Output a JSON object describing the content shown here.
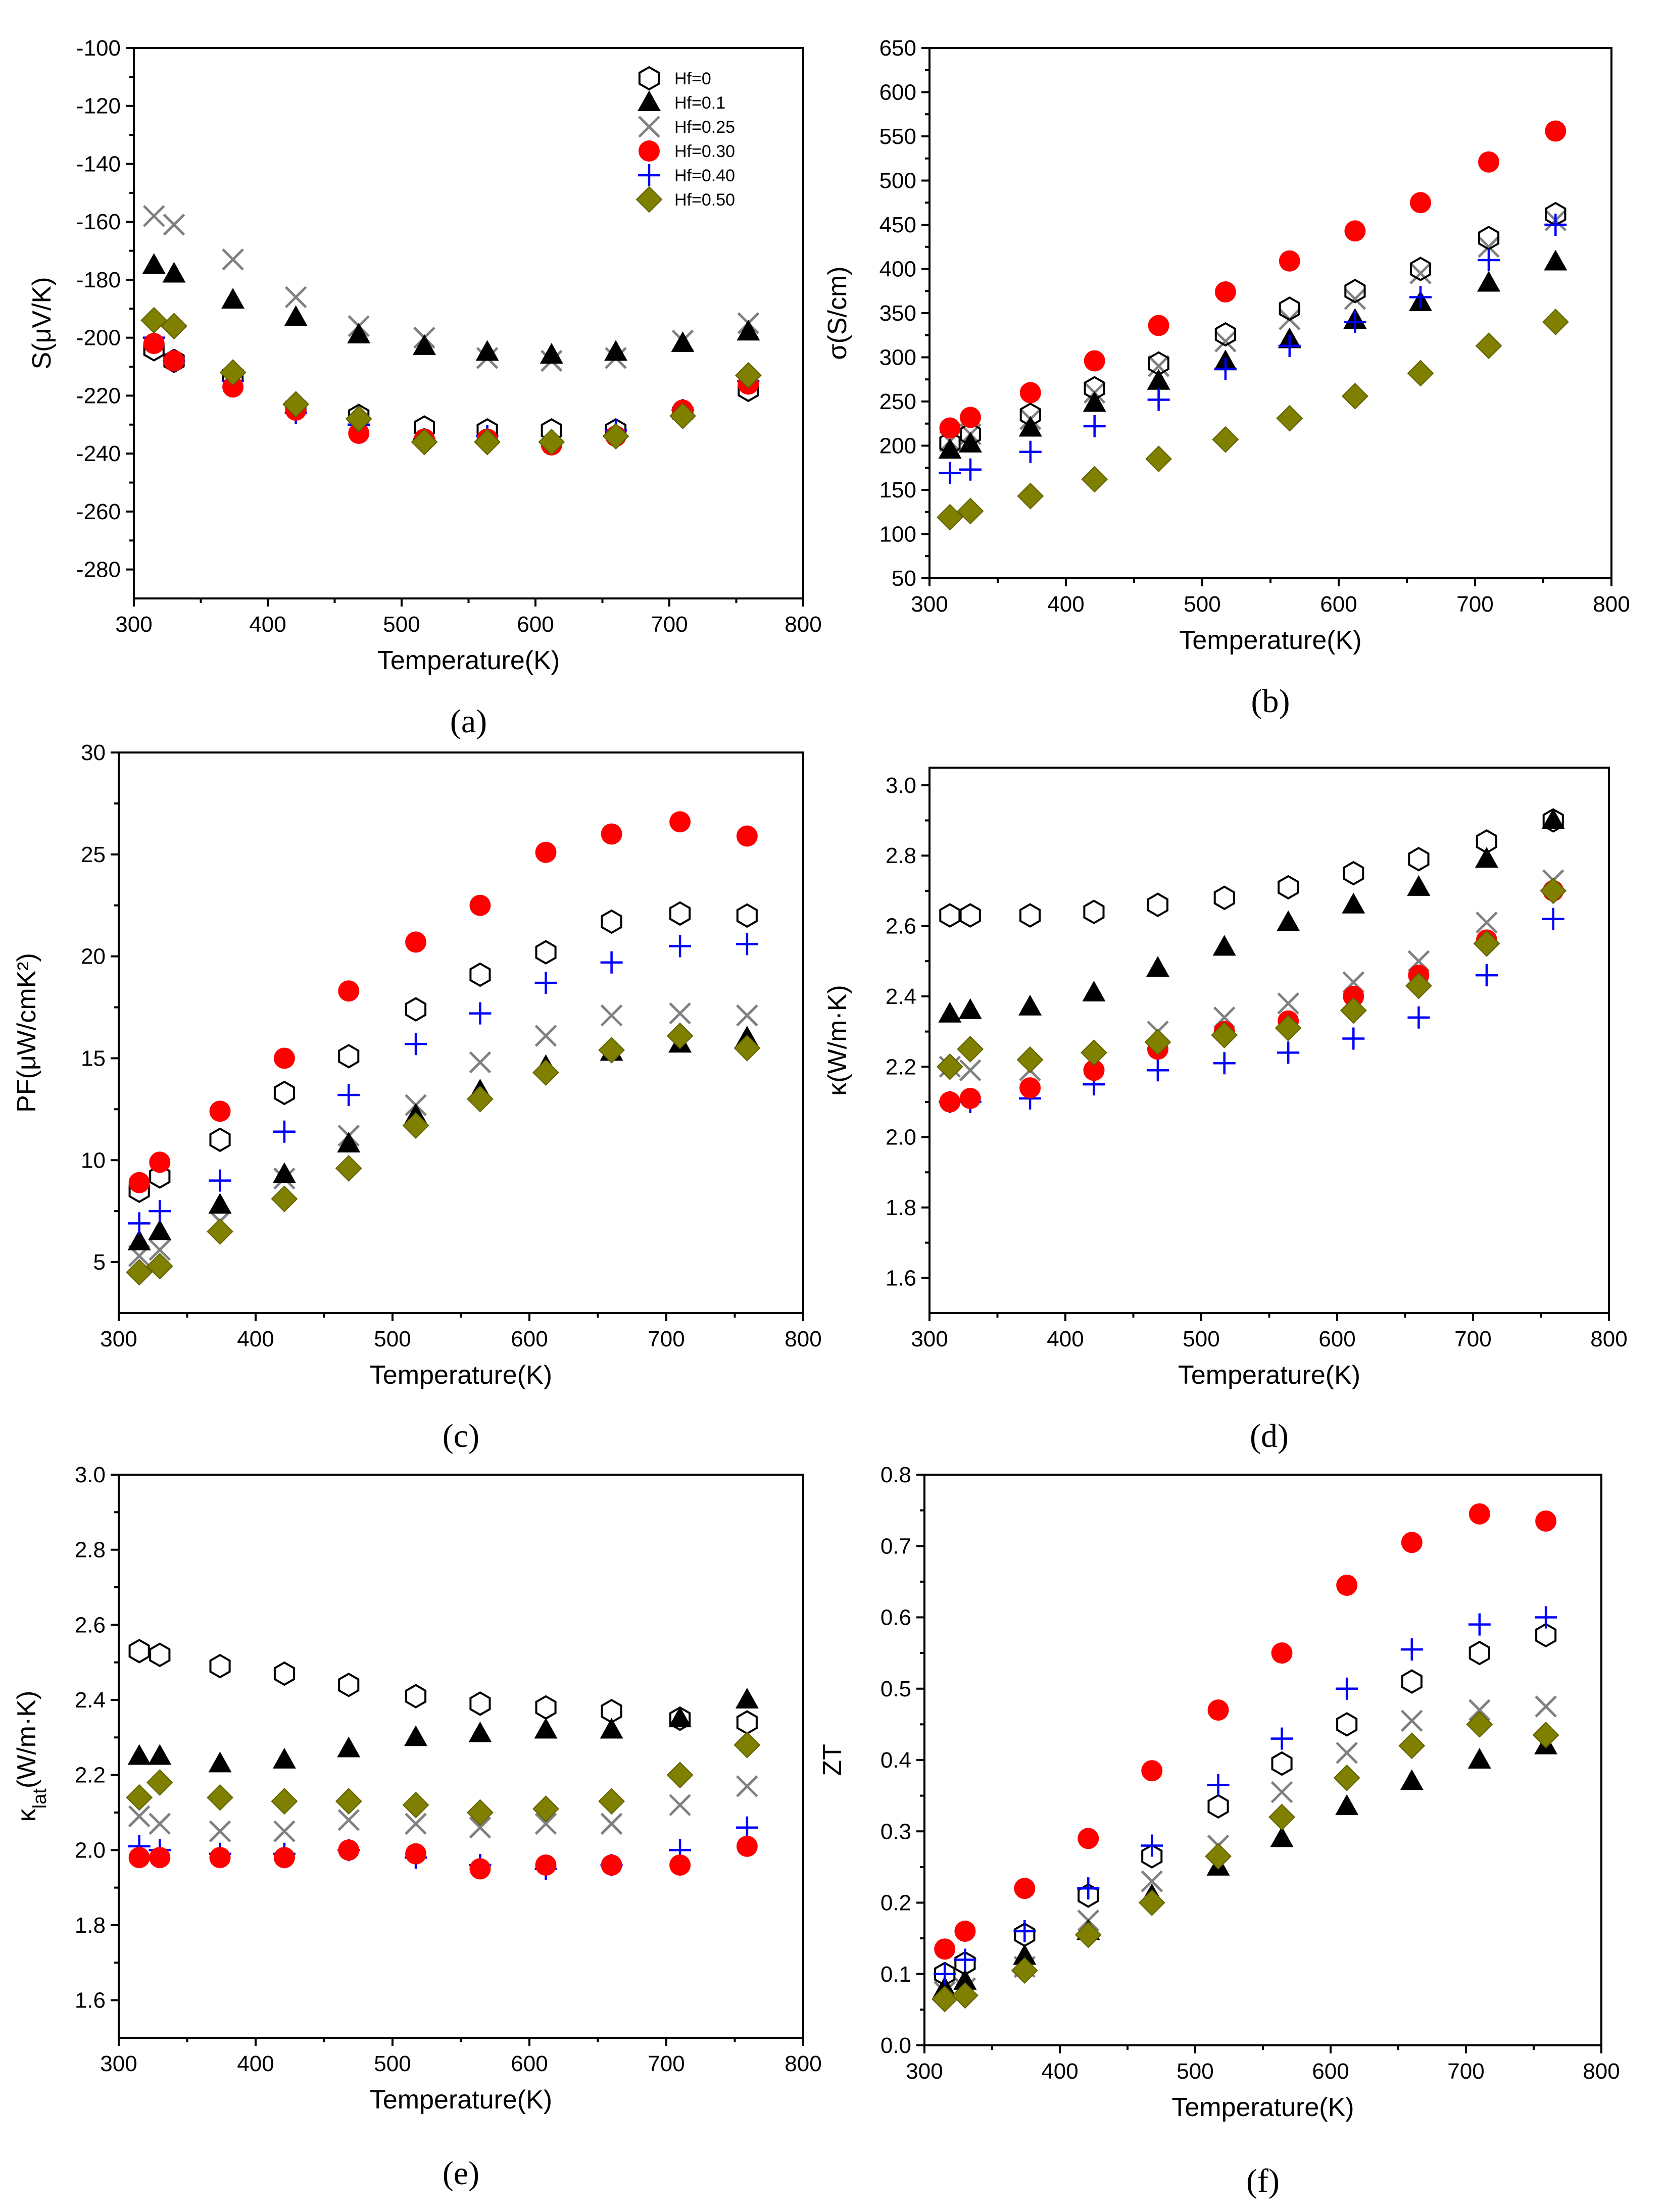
{
  "colors": {
    "red": "#ff0000",
    "blue": "#0000ff",
    "olive": "#808000",
    "gray": "#808080",
    "black": "#000000"
  },
  "legend": [
    "Hf=0",
    "Hf=0.1",
    "Hf=0.25",
    "Hf=0.30",
    "Hf=0.40",
    "Hf=0.50"
  ],
  "chart_data": [
    {
      "type": "scatter",
      "panel": "(a)",
      "xlabel": "Temperature(K)",
      "ylabel": "S(μV/K)",
      "xlim": [
        300,
        800
      ],
      "ylim": [
        -290,
        -100
      ],
      "xticks": [
        300,
        400,
        500,
        600,
        700,
        800
      ],
      "yticks": [
        -280,
        -260,
        -240,
        -220,
        -200,
        -180,
        -160,
        -140,
        -120,
        -100
      ],
      "legend": true,
      "x": [
        315,
        330,
        374,
        421,
        468,
        517,
        564,
        612,
        660,
        710,
        759
      ],
      "series": [
        {
          "name": "Hf=0",
          "values": [
            -204,
            -208,
            -213,
            -224,
            -227,
            -231,
            -232,
            -232,
            -232,
            -226,
            -218
          ]
        },
        {
          "name": "Hf=0.1",
          "values": [
            -175,
            -178,
            -187,
            -193,
            -199,
            -203,
            -205,
            -206,
            -205,
            -202,
            -198
          ]
        },
        {
          "name": "Hf=0.25",
          "values": [
            -158,
            -161,
            -173,
            -186,
            -196,
            -200,
            -207,
            -208,
            -207,
            -201,
            -195
          ]
        },
        {
          "name": "Hf=0.30",
          "values": [
            -202,
            -208,
            -217,
            -225,
            -233,
            -235,
            -235,
            -237,
            -234,
            -225,
            -216
          ]
        },
        {
          "name": "Hf=0.40",
          "values": [
            -200,
            -208,
            -215,
            -226,
            -230,
            -235,
            -234,
            -236,
            -232,
            -225,
            -215
          ]
        },
        {
          "name": "Hf=0.50",
          "values": [
            -194,
            -196,
            -212,
            -223,
            -228,
            -236,
            -236,
            -236,
            -234,
            -227,
            -213
          ]
        }
      ]
    },
    {
      "type": "scatter",
      "panel": "(b)",
      "xlabel": "Temperature(K)",
      "ylabel": "σ(S/cm)",
      "xlim": [
        300,
        800
      ],
      "ylim": [
        50,
        650
      ],
      "xticks": [
        300,
        400,
        500,
        600,
        700,
        800
      ],
      "yticks": [
        50,
        100,
        150,
        200,
        250,
        300,
        350,
        400,
        450,
        500,
        550,
        600,
        650
      ],
      "legend": false,
      "x": [
        315,
        330,
        374,
        421,
        468,
        517,
        564,
        612,
        660,
        710,
        759
      ],
      "series": [
        {
          "name": "Hf=0",
          "values": [
            203,
            213,
            235,
            265,
            293,
            326,
            355,
            375,
            400,
            435,
            462
          ]
        },
        {
          "name": "Hf=0.1",
          "values": [
            195,
            202,
            220,
            248,
            273,
            295,
            320,
            342,
            362,
            384,
            408
          ]
        },
        {
          "name": "Hf=0.25",
          "values": [
            205,
            213,
            230,
            260,
            290,
            318,
            343,
            366,
            395,
            425,
            455
          ]
        },
        {
          "name": "Hf=0.30",
          "values": [
            220,
            232,
            260,
            296,
            336,
            374,
            409,
            443,
            475,
            521,
            556
          ]
        },
        {
          "name": "Hf=0.40",
          "values": [
            169,
            173,
            193,
            222,
            252,
            287,
            313,
            340,
            368,
            410,
            450
          ]
        },
        {
          "name": "Hf=0.50",
          "values": [
            119,
            126,
            143,
            162,
            185,
            207,
            231,
            256,
            282,
            313,
            340
          ]
        }
      ]
    },
    {
      "type": "scatter",
      "panel": "(c)",
      "xlabel": "Temperature(K)",
      "ylabel": "PF(μW/cmK²)",
      "xlim": [
        300,
        800
      ],
      "ylim": [
        2.5,
        30
      ],
      "xticks": [
        300,
        400,
        500,
        600,
        700,
        800
      ],
      "yticks": [
        5,
        10,
        15,
        20,
        25,
        30
      ],
      "legend": false,
      "x": [
        315,
        330,
        374,
        421,
        468,
        517,
        564,
        612,
        660,
        710,
        759
      ],
      "series": [
        {
          "name": "Hf=0",
          "values": [
            8.5,
            9.2,
            11.0,
            13.3,
            15.1,
            17.4,
            19.1,
            20.2,
            21.7,
            22.1,
            22.0
          ]
        },
        {
          "name": "Hf=0.1",
          "values": [
            6.0,
            6.5,
            7.8,
            9.3,
            10.8,
            12.2,
            13.4,
            14.6,
            15.3,
            15.7,
            16.0
          ]
        },
        {
          "name": "Hf=0.25",
          "values": [
            5.3,
            5.6,
            7.0,
            9.1,
            11.2,
            12.7,
            14.8,
            16.1,
            17.1,
            17.2,
            17.1
          ]
        },
        {
          "name": "Hf=0.30",
          "values": [
            8.9,
            9.9,
            12.4,
            15.0,
            18.3,
            20.7,
            22.5,
            25.1,
            26.0,
            26.6,
            25.9
          ]
        },
        {
          "name": "Hf=0.40",
          "values": [
            6.9,
            7.5,
            9.0,
            11.4,
            13.2,
            15.7,
            17.2,
            18.7,
            19.7,
            20.5,
            20.6
          ]
        },
        {
          "name": "Hf=0.50",
          "values": [
            4.5,
            4.8,
            6.5,
            8.1,
            9.6,
            11.7,
            13.0,
            14.3,
            15.4,
            16.1,
            15.5
          ]
        }
      ]
    },
    {
      "type": "scatter",
      "panel": "(d)",
      "xlabel": "Temperature(K)",
      "ylabel": "κ(W/m·K)",
      "xlim": [
        300,
        800
      ],
      "ylim": [
        1.5,
        3.05
      ],
      "xticks": [
        300,
        400,
        500,
        600,
        700,
        800
      ],
      "yticks": [
        1.6,
        1.8,
        2.0,
        2.2,
        2.4,
        2.6,
        2.8,
        3.0
      ],
      "legend": false,
      "x": [
        315,
        330,
        374,
        421,
        468,
        517,
        564,
        612,
        660,
        710,
        759
      ],
      "series": [
        {
          "name": "Hf=0",
          "values": [
            2.63,
            2.63,
            2.63,
            2.64,
            2.66,
            2.68,
            2.71,
            2.75,
            2.79,
            2.84,
            2.9
          ]
        },
        {
          "name": "Hf=0.1",
          "values": [
            2.35,
            2.36,
            2.37,
            2.41,
            2.48,
            2.54,
            2.61,
            2.66,
            2.71,
            2.79,
            2.9
          ]
        },
        {
          "name": "Hf=0.25",
          "values": [
            2.2,
            2.19,
            2.19,
            2.22,
            2.3,
            2.34,
            2.38,
            2.44,
            2.5,
            2.61,
            2.73
          ]
        },
        {
          "name": "Hf=0.30",
          "values": [
            2.1,
            2.11,
            2.14,
            2.19,
            2.25,
            2.3,
            2.33,
            2.4,
            2.46,
            2.56,
            2.7
          ]
        },
        {
          "name": "Hf=0.40",
          "values": [
            2.1,
            2.1,
            2.11,
            2.15,
            2.19,
            2.21,
            2.24,
            2.28,
            2.34,
            2.46,
            2.62
          ]
        },
        {
          "name": "Hf=0.50",
          "values": [
            2.2,
            2.25,
            2.22,
            2.24,
            2.27,
            2.29,
            2.31,
            2.36,
            2.43,
            2.55,
            2.7
          ]
        }
      ]
    },
    {
      "type": "scatter",
      "panel": "(e)",
      "xlabel": "Temperature(K)",
      "ylabel": "κ",
      "ylabel_sub": "lat",
      "ylabel_rest": "(W/m·K)",
      "xlim": [
        300,
        800
      ],
      "ylim": [
        1.5,
        3.0
      ],
      "xticks": [
        300,
        400,
        500,
        600,
        700,
        800
      ],
      "yticks": [
        1.6,
        1.8,
        2.0,
        2.2,
        2.4,
        2.6,
        2.8,
        3.0
      ],
      "legend": false,
      "x": [
        315,
        330,
        374,
        421,
        468,
        517,
        564,
        612,
        660,
        710,
        759
      ],
      "series": [
        {
          "name": "Hf=0",
          "values": [
            2.53,
            2.52,
            2.49,
            2.47,
            2.44,
            2.41,
            2.39,
            2.38,
            2.37,
            2.35,
            2.34
          ]
        },
        {
          "name": "Hf=0.1",
          "values": [
            2.25,
            2.25,
            2.23,
            2.24,
            2.27,
            2.3,
            2.31,
            2.32,
            2.32,
            2.35,
            2.4
          ]
        },
        {
          "name": "Hf=0.25",
          "values": [
            2.09,
            2.07,
            2.05,
            2.05,
            2.08,
            2.07,
            2.06,
            2.07,
            2.07,
            2.12,
            2.17
          ]
        },
        {
          "name": "Hf=0.30",
          "values": [
            1.98,
            1.98,
            1.98,
            1.98,
            2.0,
            1.99,
            1.95,
            1.96,
            1.96,
            1.96,
            2.01
          ]
        },
        {
          "name": "Hf=0.40",
          "values": [
            2.01,
            2.0,
            1.99,
            1.99,
            2.0,
            1.98,
            1.96,
            1.95,
            1.96,
            2.0,
            2.06
          ]
        },
        {
          "name": "Hf=0.50",
          "values": [
            2.14,
            2.18,
            2.14,
            2.13,
            2.13,
            2.12,
            2.1,
            2.11,
            2.13,
            2.2,
            2.28
          ]
        }
      ]
    },
    {
      "type": "scatter",
      "panel": "(f)",
      "xlabel": "Temperature(K)",
      "ylabel": "ZT",
      "xlim": [
        300,
        800
      ],
      "ylim": [
        0.0,
        0.8
      ],
      "xticks": [
        300,
        400,
        500,
        600,
        700,
        800
      ],
      "yticks": [
        0.0,
        0.1,
        0.2,
        0.3,
        0.4,
        0.5,
        0.6,
        0.7,
        0.8
      ],
      "legend": false,
      "x": [
        315,
        330,
        374,
        421,
        468,
        517,
        564,
        612,
        660,
        710,
        759
      ],
      "series": [
        {
          "name": "Hf=0",
          "values": [
            0.1,
            0.115,
            0.155,
            0.21,
            0.265,
            0.335,
            0.395,
            0.45,
            0.51,
            0.55,
            0.575
          ]
        },
        {
          "name": "Hf=0.1",
          "values": [
            0.08,
            0.09,
            0.125,
            0.16,
            0.21,
            0.25,
            0.29,
            0.335,
            0.37,
            0.4,
            0.42
          ]
        },
        {
          "name": "Hf=0.25",
          "values": [
            0.075,
            0.08,
            0.11,
            0.175,
            0.23,
            0.28,
            0.355,
            0.41,
            0.455,
            0.47,
            0.475
          ]
        },
        {
          "name": "Hf=0.30",
          "values": [
            0.135,
            0.16,
            0.22,
            0.29,
            0.385,
            0.47,
            0.55,
            0.645,
            0.705,
            0.745,
            0.735
          ]
        },
        {
          "name": "Hf=0.40",
          "values": [
            0.1,
            0.12,
            0.16,
            0.22,
            0.28,
            0.365,
            0.43,
            0.5,
            0.555,
            0.59,
            0.6
          ]
        },
        {
          "name": "Hf=0.50",
          "values": [
            0.065,
            0.07,
            0.105,
            0.155,
            0.2,
            0.265,
            0.32,
            0.375,
            0.42,
            0.45,
            0.435
          ]
        }
      ]
    }
  ]
}
